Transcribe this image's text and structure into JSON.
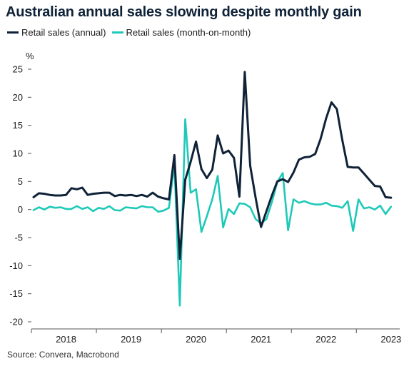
{
  "chart_data": {
    "type": "line",
    "title": "Australian annual sales slowing despite monthly gain",
    "ylabel": "%",
    "xlabel": "",
    "ylim": [
      -20,
      25
    ],
    "yticks": [
      25,
      20,
      15,
      10,
      5,
      0,
      -5,
      -10,
      -15,
      -20
    ],
    "x_tick_labels": [
      "2018",
      "2019",
      "2020",
      "2021",
      "2022",
      "2023"
    ],
    "grid": false,
    "legend_position": "top-left",
    "source": "Source: Convera, Macrobond",
    "series": [
      {
        "name": "Retail sales (annual)",
        "color": "#0f2238",
        "points": [
          [
            "2018-01",
            2.2
          ],
          [
            "2018-02",
            2.9
          ],
          [
            "2018-03",
            2.8
          ],
          [
            "2018-04",
            2.6
          ],
          [
            "2018-05",
            2.5
          ],
          [
            "2018-06",
            2.5
          ],
          [
            "2018-07",
            2.6
          ],
          [
            "2018-08",
            3.8
          ],
          [
            "2018-09",
            3.6
          ],
          [
            "2018-10",
            3.9
          ],
          [
            "2018-11",
            2.6
          ],
          [
            "2018-12",
            2.8
          ],
          [
            "2019-01",
            2.9
          ],
          [
            "2019-02",
            3.0
          ],
          [
            "2019-03",
            3.0
          ],
          [
            "2019-04",
            2.4
          ],
          [
            "2019-05",
            2.6
          ],
          [
            "2019-06",
            2.5
          ],
          [
            "2019-07",
            2.6
          ],
          [
            "2019-08",
            2.4
          ],
          [
            "2019-09",
            2.6
          ],
          [
            "2019-10",
            2.3
          ],
          [
            "2019-11",
            3.0
          ],
          [
            "2019-12",
            2.3
          ],
          [
            "2020-01",
            2.0
          ],
          [
            "2020-02",
            1.8
          ],
          [
            "2020-03",
            9.7
          ],
          [
            "2020-04",
            -8.8
          ],
          [
            "2020-05",
            5.3
          ],
          [
            "2020-06",
            8.5
          ],
          [
            "2020-07",
            12.1
          ],
          [
            "2020-08",
            7.2
          ],
          [
            "2020-09",
            5.6
          ],
          [
            "2020-10",
            7.1
          ],
          [
            "2020-11",
            13.2
          ],
          [
            "2020-12",
            10.0
          ],
          [
            "2021-01",
            10.5
          ],
          [
            "2021-02",
            9.2
          ],
          [
            "2021-03",
            2.3
          ],
          [
            "2021-04",
            24.5
          ],
          [
            "2021-05",
            7.8
          ],
          [
            "2021-06",
            2.1
          ],
          [
            "2021-07",
            -3.1
          ],
          [
            "2021-08",
            -0.3
          ],
          [
            "2021-09",
            2.5
          ],
          [
            "2021-10",
            5.0
          ],
          [
            "2021-11",
            5.4
          ],
          [
            "2021-12",
            4.9
          ],
          [
            "2022-01",
            6.6
          ],
          [
            "2022-02",
            8.9
          ],
          [
            "2022-03",
            9.3
          ],
          [
            "2022-04",
            9.4
          ],
          [
            "2022-05",
            9.9
          ],
          [
            "2022-06",
            12.6
          ],
          [
            "2022-07",
            16.2
          ],
          [
            "2022-08",
            19.1
          ],
          [
            "2022-09",
            17.9
          ],
          [
            "2022-10",
            12.4
          ],
          [
            "2022-11",
            7.6
          ],
          [
            "2022-12",
            7.5
          ],
          [
            "2023-01",
            7.5
          ],
          [
            "2023-02",
            6.4
          ],
          [
            "2023-03",
            5.3
          ],
          [
            "2023-04",
            4.2
          ],
          [
            "2023-05",
            4.1
          ],
          [
            "2023-06",
            2.2
          ],
          [
            "2023-07",
            2.1
          ]
        ]
      },
      {
        "name": "Retail sales (month-on-month)",
        "color": "#1ec9b8",
        "points": [
          [
            "2018-01",
            -0.1
          ],
          [
            "2018-02",
            0.4
          ],
          [
            "2018-03",
            0.0
          ],
          [
            "2018-04",
            0.5
          ],
          [
            "2018-05",
            0.3
          ],
          [
            "2018-06",
            0.4
          ],
          [
            "2018-07",
            0.1
          ],
          [
            "2018-08",
            0.1
          ],
          [
            "2018-09",
            0.6
          ],
          [
            "2018-10",
            0.1
          ],
          [
            "2018-11",
            0.4
          ],
          [
            "2018-12",
            -0.3
          ],
          [
            "2019-01",
            0.3
          ],
          [
            "2019-02",
            0.1
          ],
          [
            "2019-03",
            0.6
          ],
          [
            "2019-04",
            -0.1
          ],
          [
            "2019-05",
            -0.2
          ],
          [
            "2019-06",
            0.4
          ],
          [
            "2019-07",
            0.3
          ],
          [
            "2019-08",
            0.2
          ],
          [
            "2019-09",
            0.6
          ],
          [
            "2019-10",
            0.4
          ],
          [
            "2019-11",
            0.4
          ],
          [
            "2019-12",
            -0.4
          ],
          [
            "2020-01",
            -0.2
          ],
          [
            "2020-02",
            0.3
          ],
          [
            "2020-03",
            8.2
          ],
          [
            "2020-04",
            -17.1
          ],
          [
            "2020-05",
            16.1
          ],
          [
            "2020-06",
            3.0
          ],
          [
            "2020-07",
            3.6
          ],
          [
            "2020-08",
            -4.0
          ],
          [
            "2020-09",
            -1.2
          ],
          [
            "2020-10",
            1.8
          ],
          [
            "2020-11",
            6.0
          ],
          [
            "2020-12",
            -3.2
          ],
          [
            "2021-01",
            0.1
          ],
          [
            "2021-02",
            -0.8
          ],
          [
            "2021-03",
            1.1
          ],
          [
            "2021-04",
            1.0
          ],
          [
            "2021-05",
            0.4
          ],
          [
            "2021-06",
            -1.7
          ],
          [
            "2021-07",
            -2.5
          ],
          [
            "2021-08",
            -1.7
          ],
          [
            "2021-09",
            1.3
          ],
          [
            "2021-10",
            4.9
          ],
          [
            "2021-11",
            6.5
          ],
          [
            "2021-12",
            -3.7
          ],
          [
            "2022-01",
            1.8
          ],
          [
            "2022-02",
            1.2
          ],
          [
            "2022-03",
            1.5
          ],
          [
            "2022-04",
            1.1
          ],
          [
            "2022-05",
            0.9
          ],
          [
            "2022-06",
            0.9
          ],
          [
            "2022-07",
            1.2
          ],
          [
            "2022-08",
            0.7
          ],
          [
            "2022-09",
            0.6
          ],
          [
            "2022-10",
            0.3
          ],
          [
            "2022-11",
            1.5
          ],
          [
            "2022-12",
            -3.8
          ],
          [
            "2023-01",
            1.8
          ],
          [
            "2023-02",
            0.2
          ],
          [
            "2023-03",
            0.4
          ],
          [
            "2023-04",
            0.0
          ],
          [
            "2023-05",
            0.7
          ],
          [
            "2023-06",
            -0.8
          ],
          [
            "2023-07",
            0.5
          ]
        ]
      }
    ]
  }
}
